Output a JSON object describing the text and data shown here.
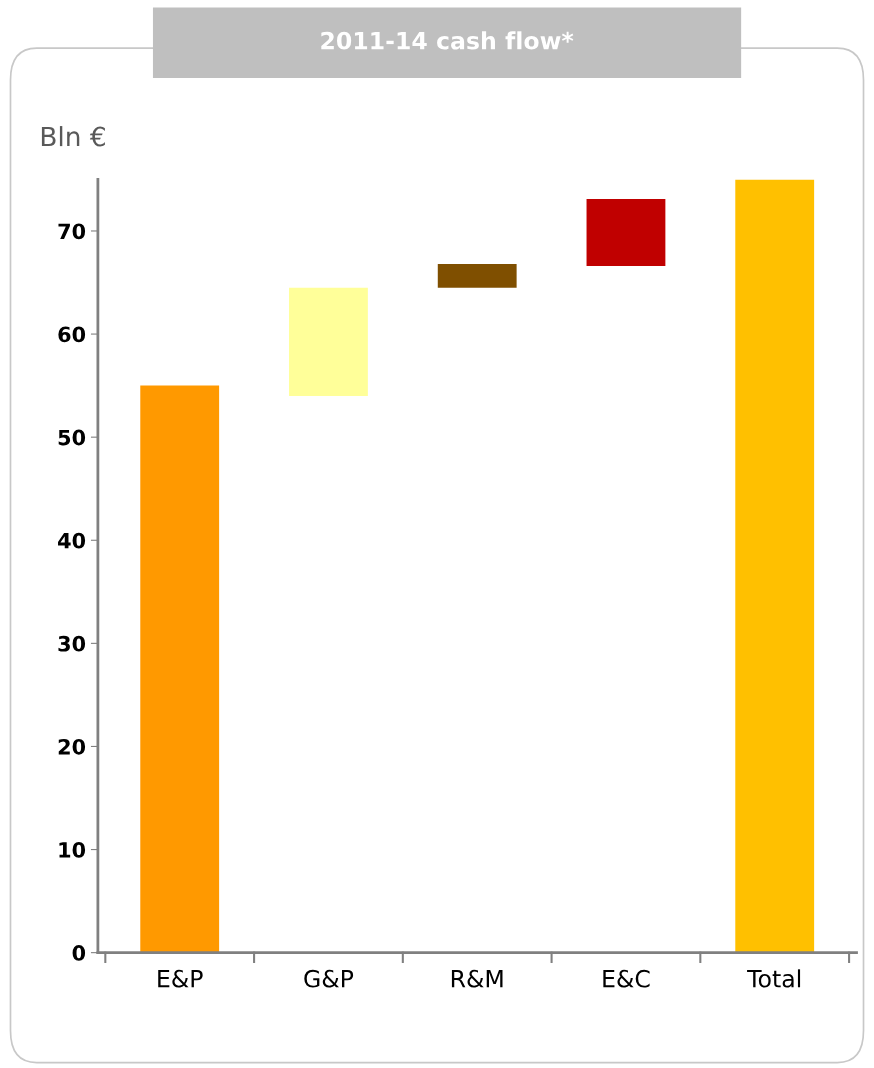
{
  "chart_data": {
    "type": "bar",
    "title": "2011-14 cash flow*",
    "ylabel": "Bln €",
    "categories": [
      "E&P",
      "G&P",
      "R&M",
      "E&C",
      "Total"
    ],
    "values": [
      55,
      10.5,
      2.3,
      6.5,
      75
    ],
    "base": [
      0,
      54,
      64.5,
      66.6,
      0
    ],
    "colors": [
      "#ff9900",
      "#ffff99",
      "#7f4f00",
      "#c00000",
      "#ffc000"
    ],
    "ylim": [
      0,
      75
    ],
    "yticks": [
      0,
      10,
      20,
      30,
      40,
      50,
      60,
      70
    ],
    "grid": false
  }
}
